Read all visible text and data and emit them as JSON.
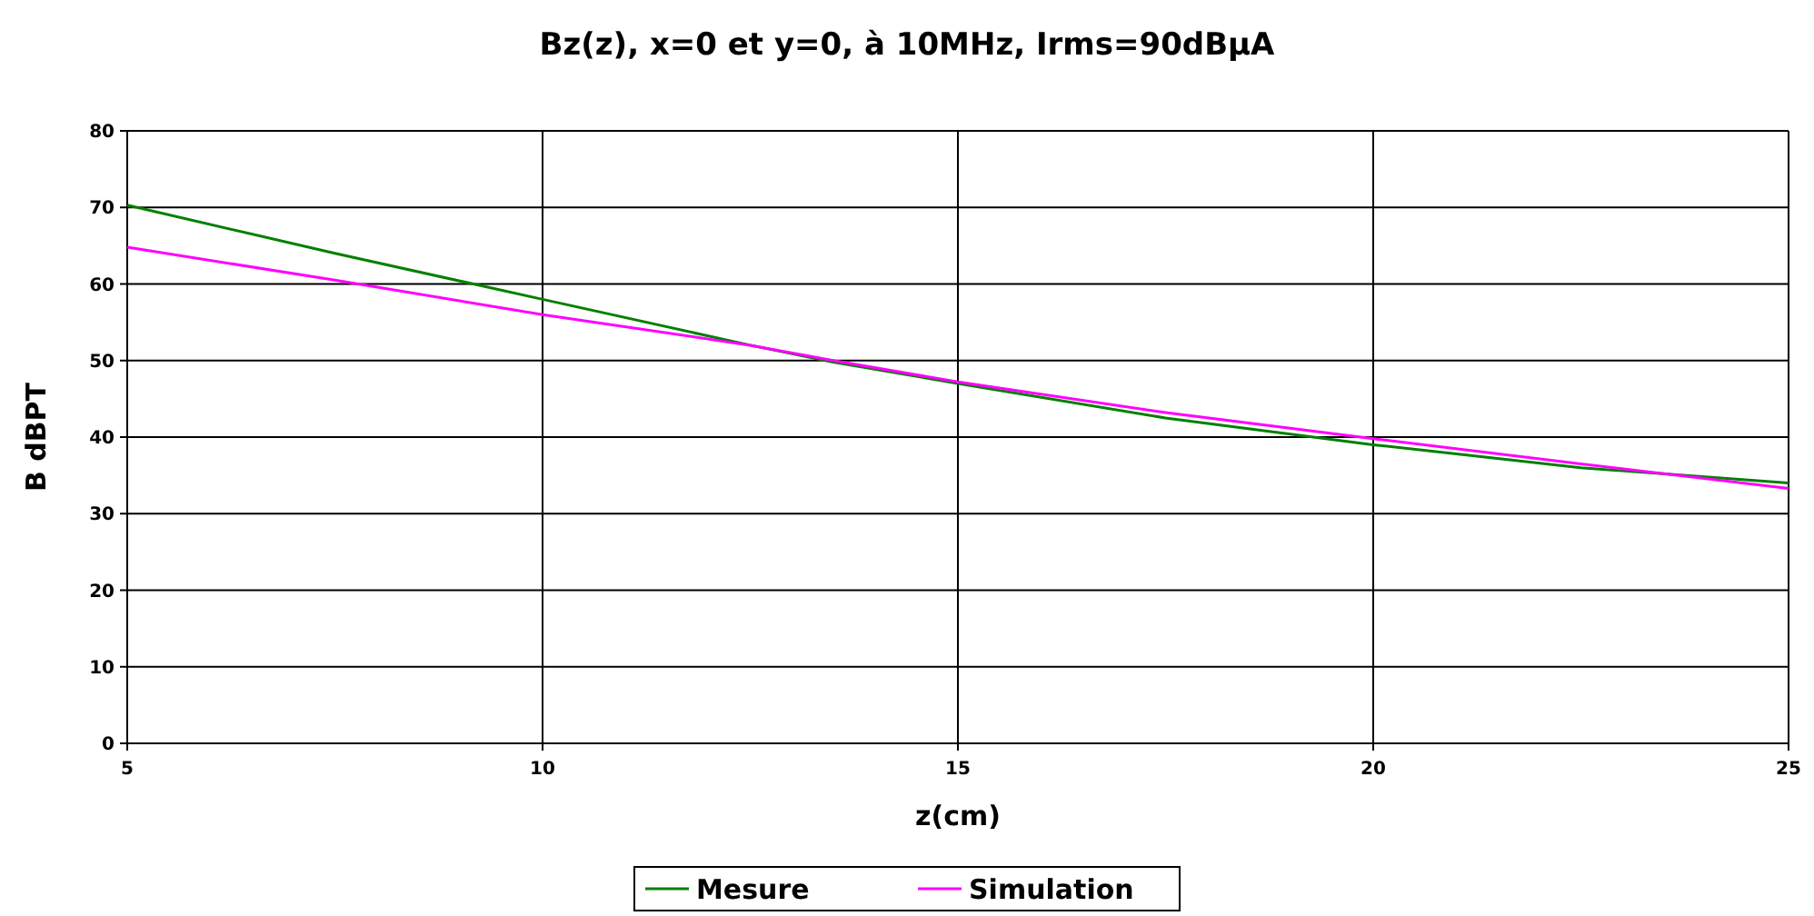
{
  "chart_data": {
    "type": "line",
    "title": "Bz(z), x=0 et y=0, à 10MHz, Irms=90dBµA",
    "xlabel": "z(cm)",
    "ylabel": "B dBPT",
    "x": [
      5,
      7.5,
      10,
      12.5,
      13.5,
      15,
      17.5,
      20,
      22.5,
      25
    ],
    "series": [
      {
        "name": "Mesure",
        "color": "#008000",
        "values": [
          70.3,
          64,
          58,
          52,
          49.8,
          47,
          42.5,
          39,
          36,
          34
        ]
      },
      {
        "name": "Simulation",
        "color": "#ff00ff",
        "values": [
          64.8,
          60.5,
          56,
          52,
          50,
          47.2,
          43.2,
          39.8,
          36.5,
          33.3
        ]
      }
    ],
    "xlim": [
      5,
      25
    ],
    "xticks": [
      5,
      10,
      15,
      20,
      25
    ],
    "ylim": [
      0,
      80
    ],
    "yticks": [
      0,
      10,
      20,
      30,
      40,
      50,
      60,
      70,
      80
    ],
    "grid": true,
    "legend": "bottom",
    "marker": "none",
    "line_style": "solid"
  }
}
